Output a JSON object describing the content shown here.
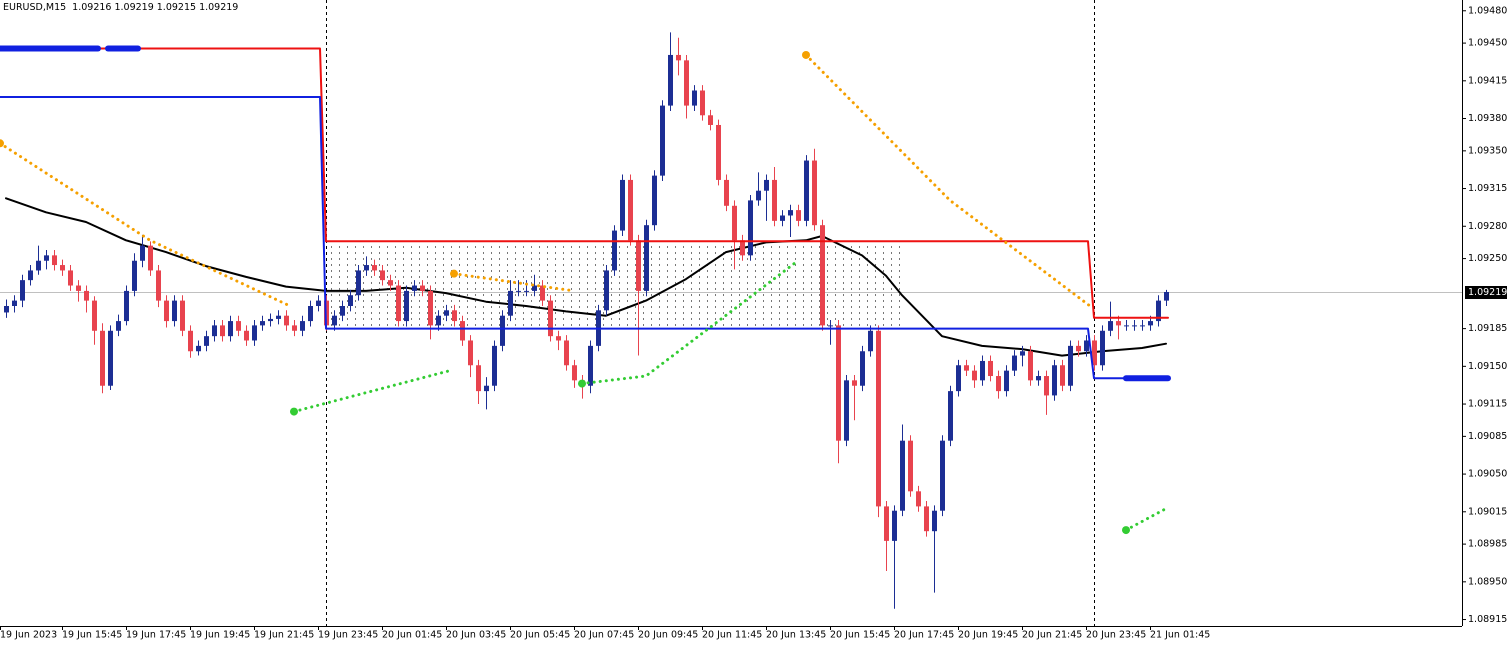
{
  "chart_data": {
    "type": "candlestick",
    "title": "EURUSD,M15",
    "quote": [
      1.09216,
      1.09219,
      1.09215,
      1.09219
    ],
    "current_price": 1.09219,
    "bull_color": "#1c2e94",
    "bear_color": "#e8434e",
    "xlim": [
      -0.75,
      182
    ],
    "ylim": [
      1.08909,
      1.0949
    ],
    "yticks": [
      {
        "value": 1.0948,
        "label": "1.09480"
      },
      {
        "value": 1.0945,
        "label": "1.09450"
      },
      1.09415,
      {
        "value": 1.0938,
        "label": "1.09380"
      },
      {
        "value": 1.0935,
        "label": "1.09350"
      },
      1.09315,
      {
        "value": 1.0928,
        "label": "1.09280"
      },
      {
        "value": 1.0925,
        "label": "1.09250"
      },
      1.09185,
      {
        "value": 1.0915,
        "label": "1.09150"
      },
      1.09115,
      1.09085,
      {
        "value": 1.0905,
        "label": "1.09050"
      },
      1.09015,
      1.08985,
      {
        "value": 1.0895,
        "label": "1.08950"
      },
      1.08915
    ],
    "xticks": [
      {
        "value": -0.75,
        "label": "19 Jun 2023"
      },
      {
        "value": 7,
        "label": "19 Jun 15:45"
      },
      {
        "value": 15,
        "label": "19 Jun 17:45"
      },
      {
        "value": 23,
        "label": "19 Jun 19:45"
      },
      {
        "value": 31,
        "label": "19 Jun 21:45"
      },
      {
        "value": 39,
        "label": "19 Jun 23:45"
      },
      {
        "value": 47,
        "label": "20 Jun 01:45"
      },
      {
        "value": 55,
        "label": "20 Jun 03:45"
      },
      {
        "value": 63,
        "label": "20 Jun 05:45"
      },
      {
        "value": 71,
        "label": "20 Jun 07:45"
      },
      {
        "value": 79,
        "label": "20 Jun 09:45"
      },
      {
        "value": 87,
        "label": "20 Jun 11:45"
      },
      {
        "value": 95,
        "label": "20 Jun 13:45"
      },
      {
        "value": 103,
        "label": "20 Jun 15:45"
      },
      {
        "value": 111,
        "label": "20 Jun 17:45"
      },
      {
        "value": 119,
        "label": "20 Jun 19:45"
      },
      {
        "value": 127,
        "label": "20 Jun 21:45"
      },
      {
        "value": 135,
        "label": "20 Jun 23:45"
      },
      {
        "value": 143,
        "label": "21 Jun 01:45"
      }
    ],
    "separators": [
      40,
      136
    ],
    "zone": {
      "x": [
        40,
        112
      ],
      "y": [
        1.09185,
        1.09266
      ]
    },
    "candles": {
      "open": [
        1.092,
        1.09206,
        1.09211,
        1.0923,
        1.09239,
        1.09248,
        1.09253,
        1.09244,
        1.09239,
        1.09225,
        1.0922,
        1.09211,
        1.09183,
        1.09132,
        1.09183,
        1.09192,
        1.0922,
        1.09248,
        1.09262,
        1.09239,
        1.09211,
        1.09192,
        1.09211,
        1.09183,
        1.09164,
        1.09169,
        1.09178,
        1.09188,
        1.09178,
        1.09192,
        1.09183,
        1.09174,
        1.09188,
        1.09192,
        1.09194,
        1.09197,
        1.09188,
        1.09183,
        1.09192,
        1.09206,
        1.09211,
        1.09188,
        1.09197,
        1.09206,
        1.09216,
        1.09239,
        1.09244,
        1.09239,
        1.0923,
        1.09225,
        1.09192,
        1.0922,
        1.09225,
        1.0922,
        1.09188,
        1.09197,
        1.09202,
        1.09192,
        1.09174,
        1.09151,
        1.09127,
        1.09132,
        1.09169,
        1.09197,
        1.0922,
        1.0922,
        1.0922,
        1.09225,
        1.09211,
        1.09178,
        1.09174,
        1.09151,
        1.09137,
        1.09132,
        1.09169,
        1.09202,
        1.09239,
        1.09276,
        1.09323,
        1.09267,
        1.0922,
        1.09281,
        1.09327,
        1.09392,
        1.09439,
        1.09434,
        1.09392,
        1.09406,
        1.09383,
        1.09374,
        1.09323,
        1.09299,
        1.09267,
        1.09253,
        1.09304,
        1.09313,
        1.09323,
        1.09285,
        1.0929,
        1.09295,
        1.09285,
        1.09341,
        1.09281,
        1.09188,
        1.09188,
        1.09081,
        1.09137,
        1.09132,
        1.09164,
        1.09183,
        1.0902,
        1.08988,
        1.09016,
        1.09081,
        1.09034,
        1.0902,
        1.08997,
        1.09016,
        1.09081,
        1.09127,
        1.09151,
        1.09146,
        1.09137,
        1.09155,
        1.09141,
        1.09127,
        1.09146,
        1.0916,
        1.09164,
        1.09137,
        1.09141,
        1.09123,
        1.09151,
        1.09132,
        1.09169,
        1.09164,
        1.09174,
        1.09151,
        1.09183,
        1.09192,
        1.09188,
        1.09188,
        1.09188,
        1.09188,
        1.09192,
        1.09211
      ],
      "high": [
        1.09212,
        1.09216,
        1.09235,
        1.09244,
        1.09262,
        1.09258,
        1.09258,
        1.09249,
        1.09244,
        1.0923,
        1.09225,
        1.09215,
        1.0919,
        1.09188,
        1.09198,
        1.09225,
        1.09255,
        1.09272,
        1.09266,
        1.09244,
        1.09216,
        1.09216,
        1.09216,
        1.09188,
        1.09174,
        1.09183,
        1.09193,
        1.09193,
        1.09197,
        1.09197,
        1.09188,
        1.09193,
        1.09197,
        1.09199,
        1.09202,
        1.09202,
        1.09193,
        1.09197,
        1.09211,
        1.09216,
        1.09216,
        1.09202,
        1.09211,
        1.09221,
        1.09244,
        1.09252,
        1.09249,
        1.09244,
        1.09235,
        1.0923,
        1.09225,
        1.0923,
        1.0923,
        1.09225,
        1.09202,
        1.09207,
        1.09207,
        1.09197,
        1.09179,
        1.09156,
        1.0914,
        1.09174,
        1.09202,
        1.0923,
        1.0923,
        1.0923,
        1.09235,
        1.0923,
        1.09216,
        1.09183,
        1.09179,
        1.09156,
        1.09142,
        1.09174,
        1.09207,
        1.09244,
        1.09281,
        1.09328,
        1.09328,
        1.09272,
        1.09286,
        1.09332,
        1.09397,
        1.0946,
        1.09455,
        1.09439,
        1.09411,
        1.09411,
        1.09388,
        1.09379,
        1.09328,
        1.09304,
        1.09272,
        1.09309,
        1.0933,
        1.09328,
        1.09335,
        1.09295,
        1.093,
        1.093,
        1.09346,
        1.09352,
        1.09286,
        1.09193,
        1.09193,
        1.09142,
        1.09142,
        1.09169,
        1.09188,
        1.09188,
        1.09025,
        1.09021,
        1.09096,
        1.09086,
        1.09039,
        1.09025,
        1.09021,
        1.09086,
        1.09132,
        1.09156,
        1.09156,
        1.09151,
        1.0916,
        1.0916,
        1.09146,
        1.09151,
        1.09165,
        1.09169,
        1.09169,
        1.09146,
        1.09146,
        1.09156,
        1.09156,
        1.09174,
        1.09174,
        1.09179,
        1.09179,
        1.09188,
        1.0921,
        1.09197,
        1.09193,
        1.09193,
        1.09193,
        1.09197,
        1.09216,
        1.09221
      ],
      "low": [
        1.09195,
        1.092,
        1.09205,
        1.09225,
        1.09235,
        1.0924,
        1.09239,
        1.09234,
        1.0922,
        1.0921,
        1.092,
        1.0917,
        1.09125,
        1.09128,
        1.09178,
        1.09188,
        1.09215,
        1.09242,
        1.09234,
        1.09205,
        1.09186,
        1.09187,
        1.09178,
        1.09158,
        1.0916,
        1.09164,
        1.09173,
        1.09173,
        1.09173,
        1.09178,
        1.09169,
        1.09169,
        1.09183,
        1.09187,
        1.09189,
        1.09183,
        1.09178,
        1.09178,
        1.09187,
        1.09201,
        1.09183,
        1.09183,
        1.09192,
        1.09201,
        1.09211,
        1.09234,
        1.09234,
        1.09225,
        1.0922,
        1.09187,
        1.09187,
        1.09215,
        1.09215,
        1.09175,
        1.09183,
        1.09192,
        1.09187,
        1.09169,
        1.0914,
        1.09115,
        1.0911,
        1.09127,
        1.09164,
        1.09192,
        1.09215,
        1.09215,
        1.09215,
        1.09206,
        1.09173,
        1.09165,
        1.09146,
        1.0913,
        1.0912,
        1.09125,
        1.09164,
        1.09197,
        1.09234,
        1.09271,
        1.09262,
        1.0916,
        1.09215,
        1.09276,
        1.09322,
        1.09387,
        1.0942,
        1.0938,
        1.09387,
        1.09378,
        1.09369,
        1.09318,
        1.09294,
        1.0924,
        1.09248,
        1.09248,
        1.09299,
        1.09285,
        1.0928,
        1.0928,
        1.0927,
        1.0928,
        1.0928,
        1.09276,
        1.09183,
        1.0917,
        1.0906,
        1.09076,
        1.091,
        1.09127,
        1.09159,
        1.0901,
        1.0896,
        1.08925,
        1.09011,
        1.09029,
        1.09015,
        1.08992,
        1.0894,
        1.09011,
        1.09076,
        1.09122,
        1.09141,
        1.0913,
        1.09132,
        1.09136,
        1.0912,
        1.09122,
        1.09141,
        1.0915,
        1.09132,
        1.09132,
        1.09105,
        1.09118,
        1.09127,
        1.09127,
        1.09159,
        1.09159,
        1.09146,
        1.09146,
        1.09178,
        1.09175,
        1.09183,
        1.09183,
        1.09183,
        1.09183,
        1.09187,
        1.09206
      ],
      "close": [
        1.09206,
        1.09211,
        1.0923,
        1.09239,
        1.09248,
        1.09253,
        1.09244,
        1.09239,
        1.09225,
        1.0922,
        1.09211,
        1.09183,
        1.09132,
        1.09183,
        1.09192,
        1.0922,
        1.09248,
        1.09262,
        1.09239,
        1.09211,
        1.09192,
        1.09211,
        1.09183,
        1.09164,
        1.09169,
        1.09178,
        1.09188,
        1.09178,
        1.09192,
        1.09183,
        1.09174,
        1.09188,
        1.09192,
        1.09194,
        1.09197,
        1.09188,
        1.09183,
        1.09192,
        1.09206,
        1.09211,
        1.09188,
        1.09197,
        1.09206,
        1.09216,
        1.09239,
        1.09244,
        1.09239,
        1.0923,
        1.09225,
        1.09192,
        1.0922,
        1.09225,
        1.0922,
        1.09188,
        1.09197,
        1.09202,
        1.09192,
        1.09174,
        1.09151,
        1.09127,
        1.09132,
        1.09169,
        1.09197,
        1.0922,
        1.0922,
        1.0922,
        1.09225,
        1.09211,
        1.09178,
        1.09174,
        1.09151,
        1.09137,
        1.09132,
        1.09169,
        1.09202,
        1.09239,
        1.09276,
        1.09323,
        1.09267,
        1.0922,
        1.09281,
        1.09327,
        1.09392,
        1.09439,
        1.09434,
        1.09392,
        1.09406,
        1.09383,
        1.09374,
        1.09323,
        1.09299,
        1.09267,
        1.09253,
        1.09304,
        1.09313,
        1.09323,
        1.09285,
        1.0929,
        1.09295,
        1.09285,
        1.09341,
        1.09281,
        1.09188,
        1.09188,
        1.09081,
        1.09137,
        1.09132,
        1.09164,
        1.09183,
        1.0902,
        1.08988,
        1.09016,
        1.09081,
        1.09034,
        1.0902,
        1.08997,
        1.09016,
        1.09081,
        1.09127,
        1.09151,
        1.09146,
        1.09137,
        1.09155,
        1.09141,
        1.09127,
        1.09146,
        1.0916,
        1.09164,
        1.09137,
        1.09141,
        1.09123,
        1.09151,
        1.09132,
        1.09169,
        1.09164,
        1.09174,
        1.09151,
        1.09183,
        1.09192,
        1.09188,
        1.09188,
        1.09188,
        1.09188,
        1.09192,
        1.09211,
        1.09219
      ]
    },
    "lines": [
      {
        "color": "#000000",
        "width": 2,
        "dash": false,
        "x": [
          0,
          5,
          10,
          15,
          20,
          25,
          30,
          35,
          40,
          45,
          50,
          55,
          60,
          65,
          70,
          75,
          80,
          85,
          90,
          95,
          100,
          102,
          107,
          110,
          112,
          117,
          122,
          127,
          132,
          137,
          142,
          145
        ],
        "values": [
          1.09306,
          1.09293,
          1.09284,
          1.09267,
          1.09256,
          1.09243,
          1.09233,
          1.09224,
          1.0922,
          1.0922,
          1.09223,
          1.09218,
          1.0921,
          1.09206,
          1.09201,
          1.09197,
          1.09211,
          1.09231,
          1.09256,
          1.09265,
          1.09267,
          1.09271,
          1.09253,
          1.09234,
          1.09216,
          1.09178,
          1.09169,
          1.09166,
          1.0916,
          1.09164,
          1.09167,
          1.09171
        ]
      },
      {
        "color": "#ee1111",
        "width": 2,
        "dash": false,
        "x": [
          -0.75,
          39.25,
          40,
          135.25,
          136,
          145.25
        ],
        "values": [
          1.09445,
          1.09445,
          1.09266,
          1.09266,
          1.09195,
          1.09195
        ]
      },
      {
        "color": "#1020e0",
        "width": 2,
        "dash": false,
        "x": [
          -0.75,
          39.25,
          40,
          135.25,
          136,
          145.25
        ],
        "values": [
          1.094,
          1.094,
          1.09185,
          1.09185,
          1.09139,
          1.09139
        ]
      },
      {
        "color": "#1020e0",
        "width": 6,
        "dash": false,
        "x": [
          -0.75,
          11.5,
          null,
          12.75,
          16.5,
          null,
          140,
          145.25
        ],
        "values": [
          1.09445,
          1.09445,
          null,
          1.09445,
          1.09445,
          null,
          1.09139,
          1.09139
        ]
      },
      {
        "color": "#f5a000",
        "width": 3,
        "dash": true,
        "x": [
          -0.75,
          18,
          35.5,
          null,
          56,
          71,
          null,
          100,
          118,
          135.5
        ],
        "values": [
          1.09357,
          1.09267,
          1.09206,
          null,
          1.09236,
          1.0922,
          null,
          1.09439,
          1.09304,
          1.09206
        ]
      },
      {
        "color": "#33cc33",
        "width": 3,
        "dash": true,
        "x": [
          36,
          55.5,
          null,
          72,
          80,
          99,
          null,
          140,
          145
        ],
        "values": [
          1.09108,
          1.09146,
          null,
          1.09134,
          1.09141,
          1.09248,
          null,
          1.08998,
          1.09018
        ]
      }
    ]
  }
}
